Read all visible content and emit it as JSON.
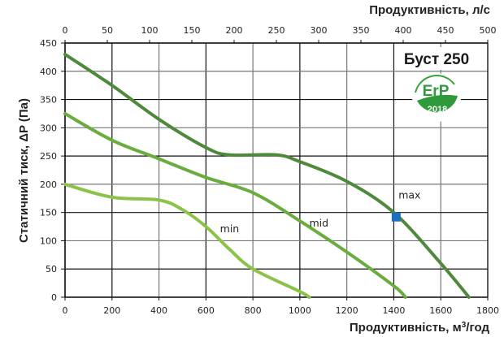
{
  "chart_data": {
    "type": "line",
    "title": "Буст 250",
    "badge": {
      "text": "ErP",
      "year": "2018"
    },
    "xlabel": "Продуктивність, м³/год",
    "xlabel_top": "Продуктивність, л/с",
    "ylabel": "Статичний тиск, ΔP (Па)",
    "xlim": [
      0,
      1800
    ],
    "ylim": [
      0,
      450
    ],
    "x_ticks": [
      0,
      200,
      400,
      600,
      800,
      1000,
      1200,
      1400,
      1600,
      1800
    ],
    "x_top_ticks": [
      0,
      50,
      100,
      150,
      200,
      250,
      300,
      350,
      400,
      450,
      500
    ],
    "y_ticks": [
      0,
      50,
      100,
      150,
      200,
      250,
      300,
      350,
      400,
      450
    ],
    "grid": true,
    "series": [
      {
        "name": "max",
        "color": "#4f8a3c",
        "x": [
          0,
          200,
          400,
          600,
          700,
          900,
          1000,
          1200,
          1400,
          1600,
          1720
        ],
        "y": [
          430,
          375,
          315,
          265,
          252,
          252,
          240,
          205,
          150,
          60,
          0
        ]
      },
      {
        "name": "mid",
        "color": "#6aac3e",
        "x": [
          0,
          200,
          400,
          600,
          800,
          1000,
          1200,
          1400,
          1450
        ],
        "y": [
          325,
          278,
          245,
          212,
          185,
          135,
          80,
          20,
          0
        ]
      },
      {
        "name": "min",
        "color": "#8bc34a",
        "x": [
          0,
          200,
          400,
          500,
          600,
          700,
          800,
          1000,
          1040
        ],
        "y": [
          200,
          177,
          172,
          155,
          125,
          85,
          50,
          10,
          0
        ]
      }
    ],
    "annotations": [
      {
        "text": "max",
        "x": 1420,
        "y": 175
      },
      {
        "text": "mid",
        "x": 1040,
        "y": 125
      },
      {
        "text": "min",
        "x": 660,
        "y": 115
      }
    ],
    "marker": {
      "name": "max-point",
      "x": 1410,
      "y": 142,
      "color": "#1a6fbf"
    }
  }
}
